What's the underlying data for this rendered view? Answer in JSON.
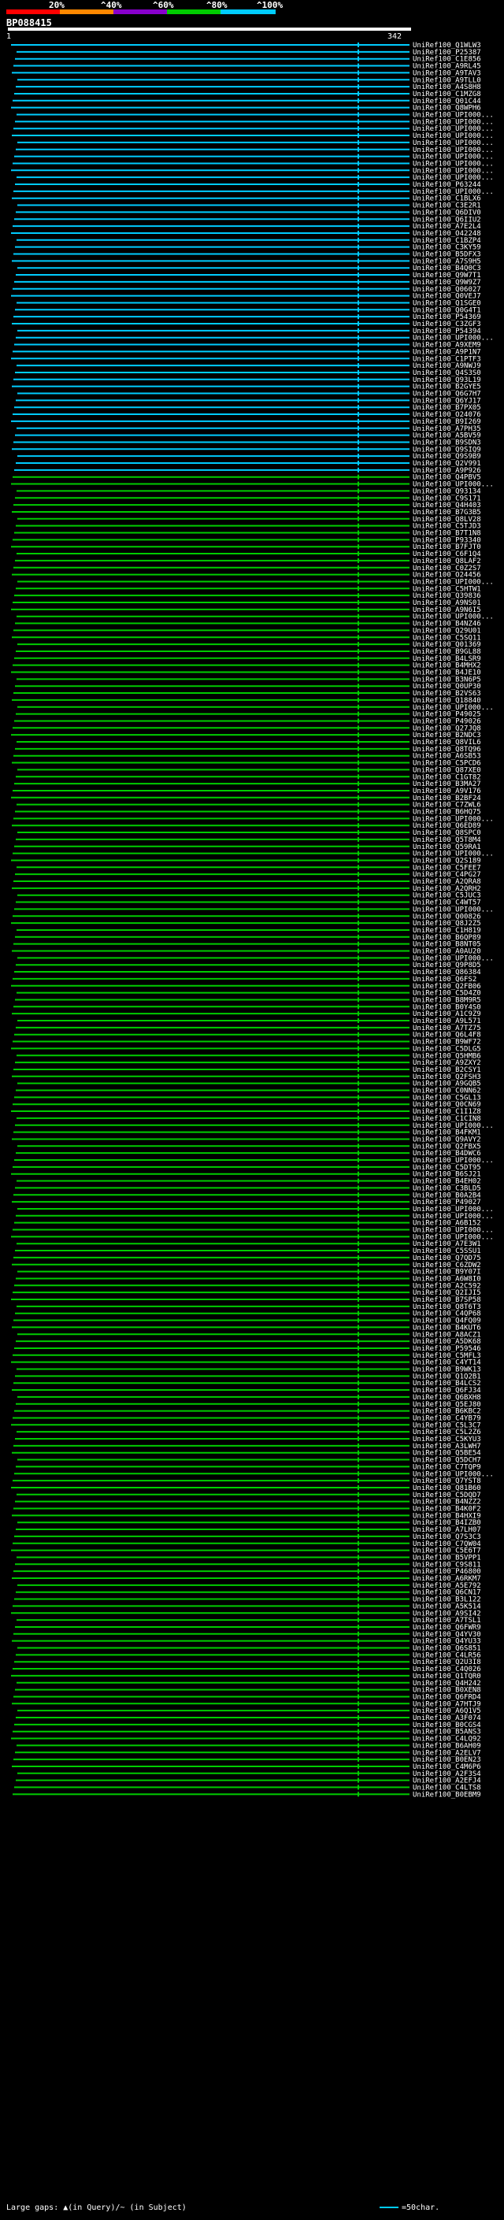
{
  "scale": {
    "labels": [
      "20%",
      "^40%",
      "^60%",
      "^80%",
      "^100%"
    ],
    "colors": [
      "#ff0000",
      "#ff8800",
      "#8800cc",
      "#00cc00",
      "#00ccff"
    ]
  },
  "query": {
    "name": "BP088415",
    "start": "1",
    "end": "342"
  },
  "legend": {
    "left_text": "Large gaps: ▲(in Query)/~ (in Subject)",
    "right_text": "=50char."
  },
  "hits": {
    "labels": [
      "UniRef100_Q1WLW3",
      "UniRef100_P25387",
      "UniRef100_C1E856",
      "UniRef100_A9RL45",
      "UniRef100_A9TAV3",
      "UniRef100_A9TLL0",
      "UniRef100_A4S8H8",
      "UniRef100_C1MZG8",
      "UniRef100_Q01C44",
      "UniRef100_Q8WPH6",
      "UniRef100_UPI000...",
      "UniRef100_UPI000...",
      "UniRef100_UPI000...",
      "UniRef100_UPI000...",
      "UniRef100_UPI000...",
      "UniRef100_UPI000...",
      "UniRef100_UPI000...",
      "UniRef100_UPI000...",
      "UniRef100_UPI000...",
      "UniRef100_UPI000...",
      "UniRef100_P63244",
      "UniRef100_UPI000...",
      "UniRef100_C1BLX6",
      "UniRef100_C3E2R1",
      "UniRef100_Q6DIV0",
      "UniRef100_Q6IIU2",
      "UniRef100_A7E2L4",
      "UniRef100_O42248",
      "UniRef100_C1BZP4",
      "UniRef100_C3KY59",
      "UniRef100_B5DFX3",
      "UniRef100_A7S9H5",
      "UniRef100_B4Q0C3",
      "UniRef100_Q9W7T1",
      "UniRef100_Q9W9Z7",
      "UniRef100_Q06027",
      "UniRef100_Q0VEJ7",
      "UniRef100_Q1SGE0",
      "UniRef100_Q0G4T1",
      "UniRef100_P54369",
      "UniRef100_C3ZGF3",
      "UniRef100_P54394",
      "UniRef100_UPI000...",
      "UniRef100_A9XEM9",
      "UniRef100_A9P1N7",
      "UniRef100_C1PTF3",
      "UniRef100_A9NWJ9",
      "UniRef100_Q4S3S0",
      "UniRef100_Q93L19",
      "UniRef100_B2GYE5",
      "UniRef100_Q6G7H7",
      "UniRef100_Q6YJ17",
      "UniRef100_B7PX05",
      "UniRef100_O24076",
      "UniRef100_B9I269",
      "UniRef100_A7PH35",
      "UniRef100_A5BV59",
      "UniRef100_B9SDN3",
      "UniRef100_Q9SIQ9",
      "UniRef100_Q9S9B9",
      "UniRef100_Q2V991",
      "UniRef100_A9P926",
      "UniRef100_Q4PBV5",
      "UniRef100_UPI000...",
      "UniRef100_Q93134",
      "UniRef100_C9S171",
      "UniRef100_Q4H403",
      "UniRef100_B7G3B5",
      "UniRef100_Q8LV28",
      "UniRef100_C5TJD3",
      "UniRef100_B7T1N8",
      "UniRef100_P93340",
      "UniRef100_B7FJT0",
      "UniRef100_C6F1Q4",
      "UniRef100_Q8LAF2",
      "UniRef100_C0Z2S7",
      "UniRef100_O24456",
      "UniRef100_UPI000...",
      "UniRef100_C5HTW1",
      "UniRef100_Q39836",
      "UniRef100_A9NS01",
      "UniRef100_A9N6I5",
      "UniRef100_UPI000...",
      "UniRef100_B4NZ46",
      "UniRef100_Q29U01",
      "UniRef100_C5SQ11",
      "UniRef100_Q01369",
      "UniRef100_B9GL88",
      "UniRef100_B4LSR9",
      "UniRef100_B4MHX2",
      "UniRef100_B4JE10",
      "UniRef100_B3N6P5",
      "UniRef100_Q0UP30",
      "UniRef100_B2VS63",
      "UniRef100_Q18840",
      "UniRef100_UPI000...",
      "UniRef100_P49025",
      "UniRef100_P49026",
      "UniRef100_Q27JQ8",
      "UniRef100_B2NDC3",
      "UniRef100_Q8VIL6",
      "UniRef100_Q8TQ96",
      "UniRef100_A6SB53",
      "UniRef100_C5PCD6",
      "UniRef100_Q87XE0",
      "UniRef100_C1GT82",
      "UniRef100_B3MA27",
      "UniRef100_A9V176",
      "UniRef100_B2BF24",
      "UniRef100_C7ZWL6",
      "UniRef100_B6HQ75",
      "UniRef100_UPI000...",
      "UniRef100_Q6ED89",
      "UniRef100_Q8SPC0",
      "UniRef100_Q5T8M4",
      "UniRef100_Q59RA1",
      "UniRef100_UPI000...",
      "UniRef100_Q2S189",
      "UniRef100_C5FEE7",
      "UniRef100_C4PG27",
      "UniRef100_A2QRA8",
      "UniRef100_A2QRH2",
      "UniRef100_C5JUC3",
      "UniRef100_C4WT57",
      "UniRef100_UPI000...",
      "UniRef100_Q00826",
      "UniRef100_Q8J2Z5",
      "UniRef100_C1H819",
      "UniRef100_B6QP89",
      "UniRef100_B8NT05",
      "UniRef100_A0AU20",
      "UniRef100_UPI000...",
      "UniRef100_Q9P8D5",
      "UniRef100_Q86384",
      "UniRef100_Q6FS2",
      "UniRef100_Q2FB06",
      "UniRef100_C5D4Z0",
      "UniRef100_B8M9R5",
      "UniRef100_B0Y4S0",
      "UniRef100_A1C9Z9",
      "UniRef100_A9L571",
      "UniRef100_A7TZ75",
      "UniRef100_Q6L4F8",
      "UniRef100_B9WF72",
      "UniRef100_C5DLG5",
      "UniRef100_Q5HMB6",
      "UniRef100_A9ZXY2",
      "UniRef100_B2CSY1",
      "UniRef100_Q2FSH3",
      "UniRef100_A9GQB5",
      "UniRef100_C0NN62",
      "UniRef100_C5GL13",
      "UniRef100_Q0CN69",
      "UniRef100_C1I1Z8",
      "UniRef100_C1CIN8",
      "UniRef100_UPI000...",
      "UniRef100_B4FKM1",
      "UniRef100_Q9AVY2",
      "UniRef100_Q2FBX5",
      "UniRef100_B4DWC6",
      "UniRef100_UPI000...",
      "UniRef100_C5DT95",
      "UniRef100_B6SJ21",
      "UniRef100_B4EH02",
      "UniRef100_C3BLD5",
      "UniRef100_B0A2B4",
      "UniRef100_P49027",
      "UniRef100_UPI000...",
      "UniRef100_UPI000...",
      "UniRef100_A6B152",
      "UniRef100_UPI000...",
      "UniRef100_UPI000...",
      "UniRef100_A7E3W1",
      "UniRef100_C5SSU1",
      "UniRef100_Q7QD75",
      "UniRef100_C6ZDW2",
      "UniRef100_B9Y07I",
      "UniRef100_A6W8I0",
      "UniRef100_A2C592",
      "UniRef100_Q2IJI5",
      "UniRef100_B7SP58",
      "UniRef100_Q8T6T3",
      "UniRef100_C4QP68",
      "UniRef100_Q4FQ09",
      "UniRef100_B4KUT6",
      "UniRef100_A8ACZ1",
      "UniRef100_A5DK68",
      "UniRef100_P59546",
      "UniRef100_C5MFL3",
      "UniRef100_C4YT14",
      "UniRef100_B9WK13",
      "UniRef100_Q1Q2B1",
      "UniRef100_B4LCS2",
      "UniRef100_Q6FJ34",
      "UniRef100_Q6BXH8",
      "UniRef100_Q5EJ80",
      "UniRef100_B6KBC2",
      "UniRef100_C4YB79",
      "UniRef100_C5L3C7",
      "UniRef100_C5L2Z6",
      "UniRef100_C5KYU3",
      "UniRef100_A3LWH7",
      "UniRef100_Q5BE54",
      "UniRef100_Q5DCH7",
      "UniRef100_C7TQP9",
      "UniRef100_UPI000...",
      "UniRef100_Q7YST8",
      "UniRef100_Q81B60",
      "UniRef100_C5DQD7",
      "UniRef100_B4NZZ2",
      "UniRef100_B4K0F2",
      "UniRef100_B4HXI9",
      "UniRef100_B4IZB0",
      "UniRef100_A7LH07",
      "UniRef100_Q7S3C3",
      "UniRef100_C7QW04",
      "UniRef100_C5E6T7",
      "UniRef100_B5VPP1",
      "UniRef100_C9S811",
      "UniRef100_P46800",
      "UniRef100_A6RKM7",
      "UniRef100_A5E792",
      "UniRef100_Q6CN17",
      "UniRef100_B3L122",
      "UniRef100_A5K514",
      "UniRef100_A9SI42",
      "UniRef100_A7TSL1",
      "UniRef100_Q6FWR9",
      "UniRef100_Q4YV30",
      "UniRef100_Q4YU33",
      "UniRef100_Q6S851",
      "UniRef100_C4LR56",
      "UniRef100_Q2U3I8",
      "UniRef100_C4Q026",
      "UniRef100_Q1TQR0",
      "UniRef100_Q4H242",
      "UniRef100_B0XEN8",
      "UniRef100_Q6FRD4",
      "UniRef100_A7HTJ9",
      "UniRef100_A6Q1V5",
      "UniRef100_A3F074",
      "UniRef100_B0CGS4",
      "UniRef100_B5ANS3",
      "UniRef100_C4LQ92",
      "UniRef100_B6AH09",
      "UniRef100_A2ELV7",
      "UniRef100_B0EN23",
      "UniRef100_C4M6P6",
      "UniRef100_A2F3S4",
      "UniRef100_A2EFJ4",
      "UniRef100_C4LTS8",
      "UniRef100_B0EBM9"
    ]
  }
}
